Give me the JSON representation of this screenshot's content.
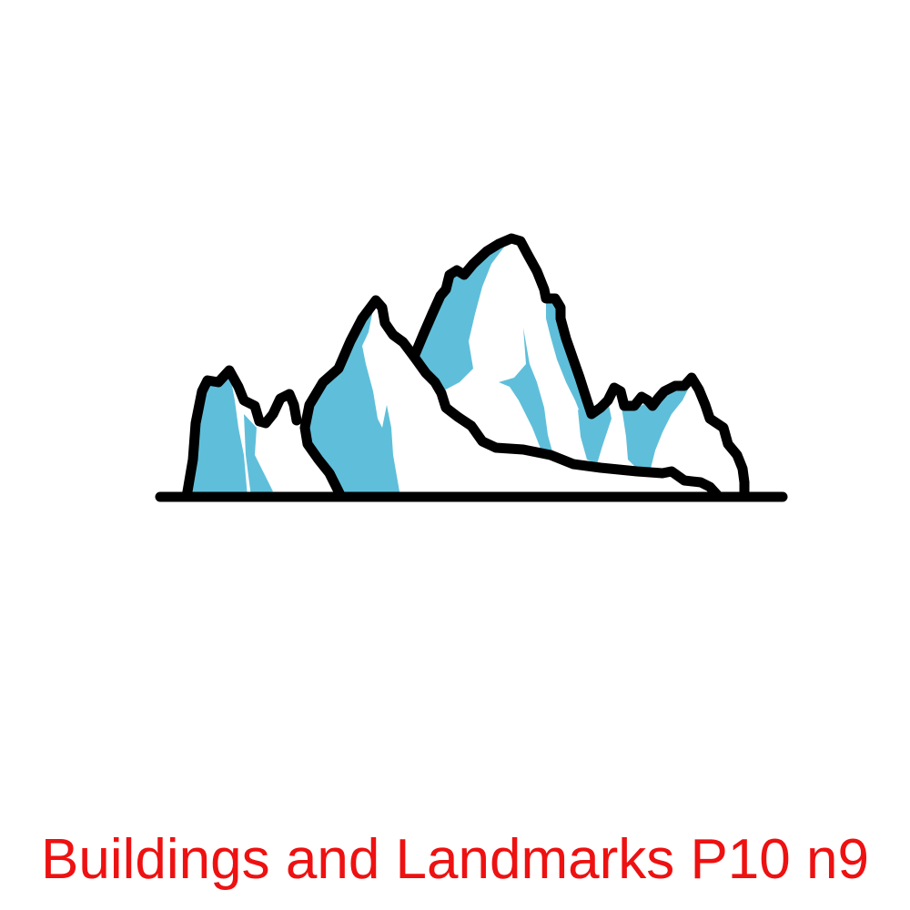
{
  "caption": "Buildings and Landmarks P10 n9",
  "illustration": {
    "icon": "mountain-range-icon",
    "colors": {
      "outline": "#000000",
      "snow": "#ffffff",
      "ice_shadow": "#5fbfda",
      "caption_text": "#ee1111",
      "background": "#ffffff"
    }
  }
}
